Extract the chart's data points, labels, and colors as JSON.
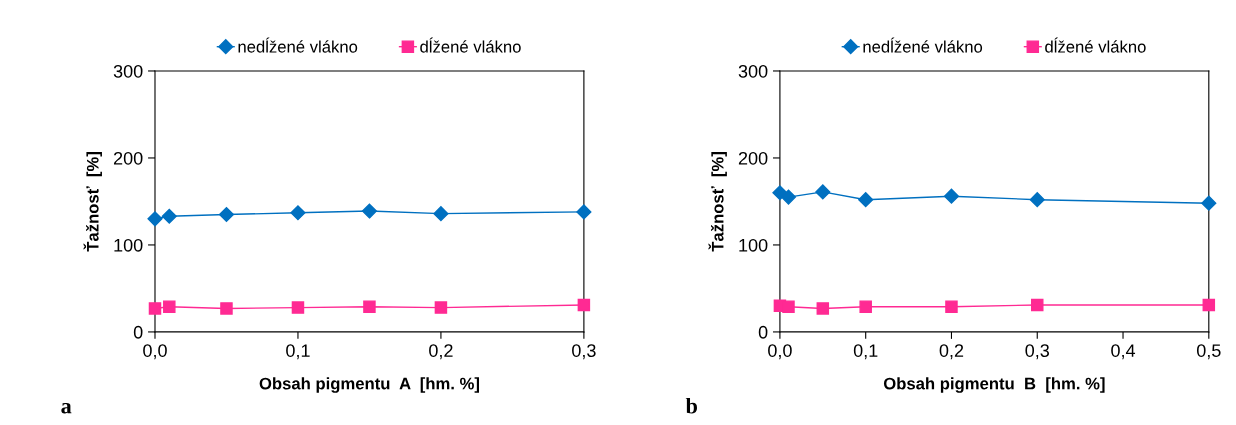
{
  "chart_data": [
    {
      "type": "line",
      "xlabel": "Obsah pigmentu  A  [hm. %]",
      "ylabel": "Ťažnosť  [%]",
      "annotations": [
        "a"
      ],
      "xlim": [
        0,
        0.3
      ],
      "xticks": [
        {
          "value": 0,
          "label": "0,0"
        },
        {
          "value": 0.1,
          "label": "0,1"
        },
        {
          "value": 0.2,
          "label": "0,2"
        },
        {
          "value": 0.3,
          "label": "0,3"
        }
      ],
      "ylim": [
        0,
        300
      ],
      "yticks": [
        0,
        100,
        200,
        300
      ],
      "grid": false,
      "legend": "top",
      "x": [
        0,
        0.01,
        0.05,
        0.1,
        0.15,
        0.2,
        0.3
      ],
      "series": [
        {
          "name": "nedĺžené vlákno",
          "color": "#0070c0",
          "marker": "diamond",
          "values": [
            130,
            133,
            135,
            137,
            139,
            136,
            138
          ]
        },
        {
          "name": "dĺžené vlákno",
          "color": "#ff2a93",
          "marker": "square",
          "values": [
            27,
            29,
            27,
            28,
            29,
            28,
            31
          ]
        }
      ]
    },
    {
      "type": "line",
      "xlabel": "Obsah pigmentu  B  [hm. %]",
      "ylabel": "Ťažnosť  [%]",
      "annotations": [
        "b"
      ],
      "xlim": [
        0,
        0.5
      ],
      "xticks": [
        {
          "value": 0,
          "label": "0,0"
        },
        {
          "value": 0.1,
          "label": "0,1"
        },
        {
          "value": 0.2,
          "label": "0,2"
        },
        {
          "value": 0.3,
          "label": "0,3"
        },
        {
          "value": 0.4,
          "label": "0,4"
        },
        {
          "value": 0.5,
          "label": "0,5"
        }
      ],
      "ylim": [
        0,
        300
      ],
      "yticks": [
        0,
        100,
        200,
        300
      ],
      "grid": false,
      "legend": "top",
      "x": [
        0,
        0.01,
        0.05,
        0.1,
        0.2,
        0.3,
        0.5
      ],
      "series": [
        {
          "name": "nedĺžené vlákno",
          "color": "#0070c0",
          "marker": "diamond",
          "values": [
            160,
            155,
            161,
            152,
            156,
            152,
            148
          ]
        },
        {
          "name": "dĺžené vlákno",
          "color": "#ff2a93",
          "marker": "square",
          "values": [
            30,
            29,
            27,
            29,
            29,
            31,
            31
          ]
        }
      ]
    }
  ]
}
